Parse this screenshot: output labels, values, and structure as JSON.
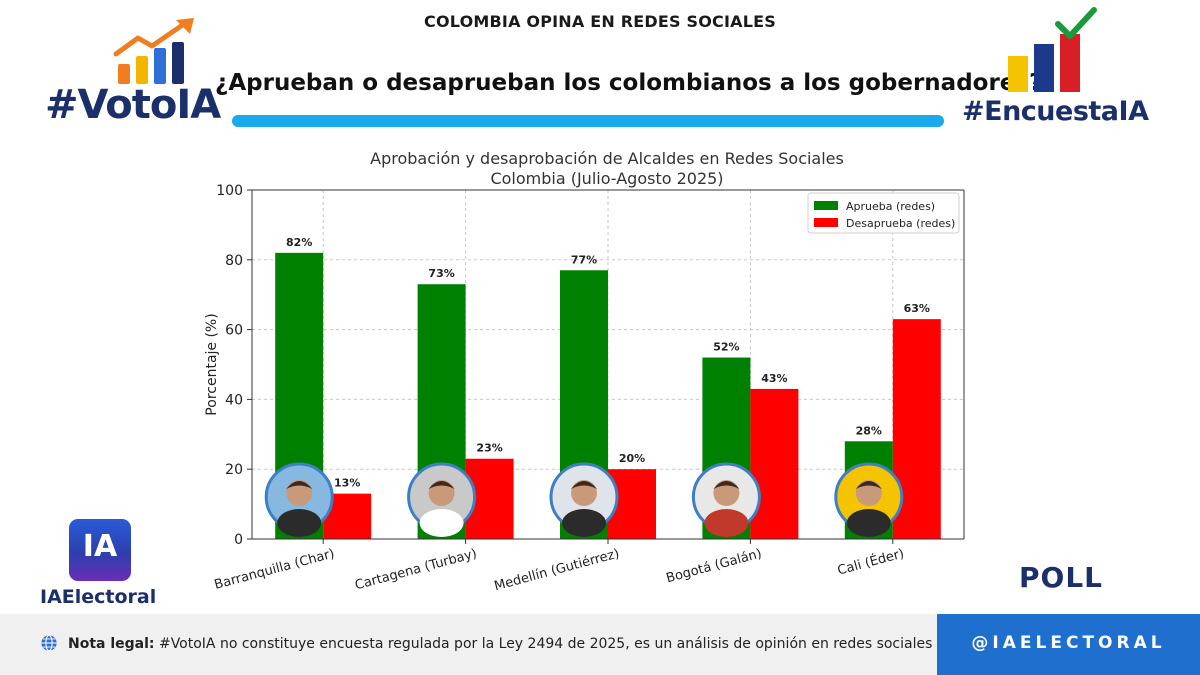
{
  "header": {
    "top_title": "COLOMBIA OPINA EN REDES SOCIALES",
    "headline": "¿Aprueban o desaprueban los colombianos a los gobernadores?"
  },
  "brands": {
    "left_logo": "#VotoIA",
    "right_logo": "#EncuestaIA",
    "ia_mark": "IA",
    "ia_brand": "IAElectoral",
    "poll_label": "POLL",
    "handle": "@IAELECTORAL"
  },
  "footer": {
    "note_label": "Nota legal:",
    "note_text": " #VotoIA no constituye encuesta regulada por la Ley 2494 de 2025, es un análisis de opinión en redes sociales con IA."
  },
  "colors": {
    "approve": "#008000",
    "disapprove": "#ff0000",
    "accent_blue": "#1aa9ec",
    "brand_navy": "#1b2f6b",
    "handle_blue": "#1f6fcf"
  },
  "chart_data": {
    "type": "bar",
    "title": "Aprobación y desaprobación de Alcaldes en Redes Sociales",
    "subtitle": "Colombia (Julio-Agosto 2025)",
    "xlabel": "",
    "ylabel": "Porcentaje (%)",
    "ylim": [
      0,
      100
    ],
    "yticks": [
      "0",
      "20",
      "40",
      "60",
      "80",
      "100"
    ],
    "grid": true,
    "legend_position": "top-right",
    "categories": [
      "Barranquilla (Char)",
      "Cartagena (Turbay)",
      "Medellín (Gutiérrez)",
      "Bogotá (Galán)",
      "Cali (Éder)"
    ],
    "series": [
      {
        "name": "Aprueba (redes)",
        "values": [
          82,
          73,
          77,
          52,
          28
        ],
        "labels": [
          "82%",
          "73%",
          "77%",
          "52%",
          "28%"
        ]
      },
      {
        "name": "Desaprueba (redes)",
        "values": [
          13,
          23,
          20,
          43,
          63
        ],
        "labels": [
          "13%",
          "23%",
          "20%",
          "43%",
          "63%"
        ]
      }
    ]
  }
}
